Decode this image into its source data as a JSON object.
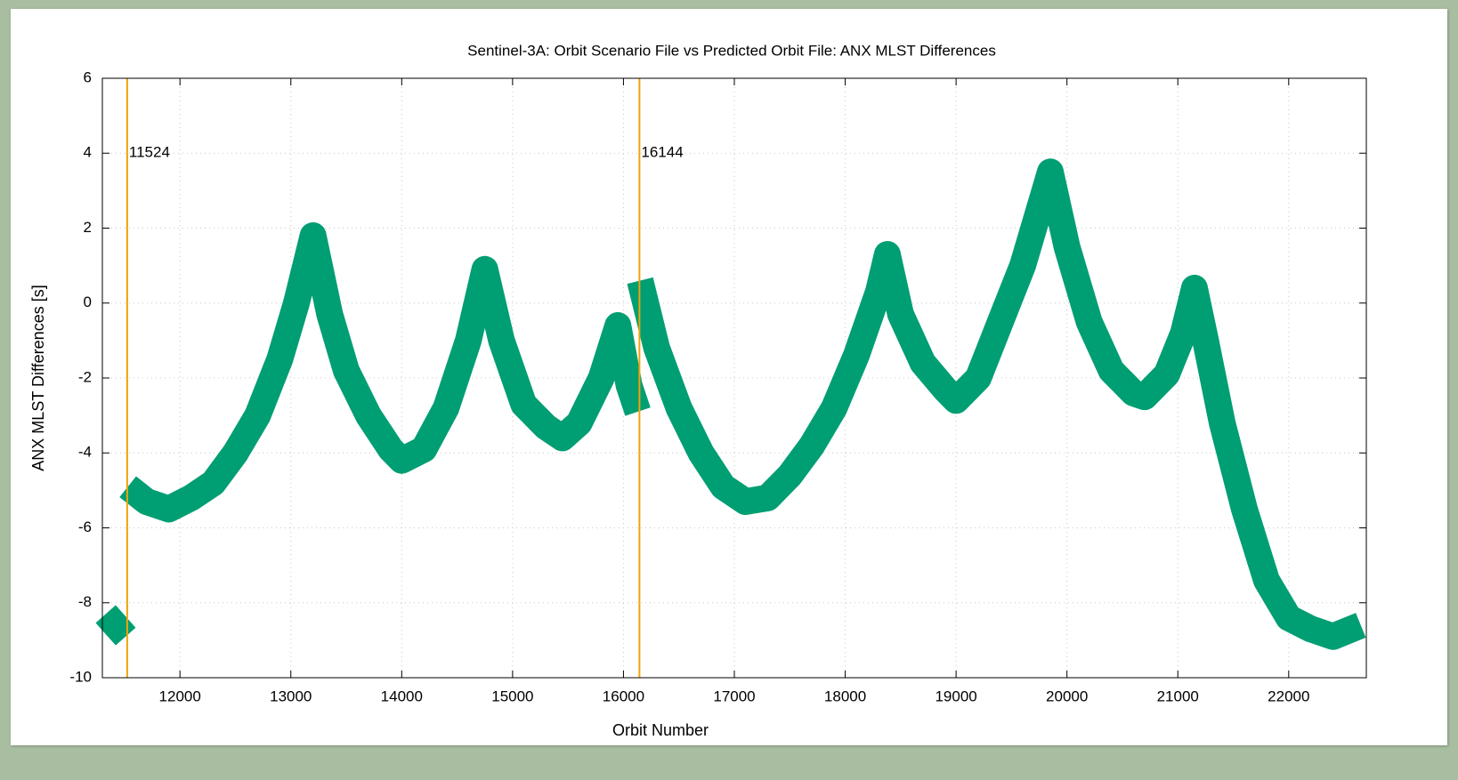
{
  "chart_data": {
    "type": "line",
    "title": "Sentinel-3A: Orbit Scenario File vs Predicted Orbit File: ANX MLST Differences",
    "x_label": "Orbit Number",
    "y_label": "ANX MLST Differences [s]",
    "xlim": [
      11300,
      22700
    ],
    "ylim": [
      -10,
      6
    ],
    "xticks": [
      12000,
      13000,
      14000,
      15000,
      16000,
      17000,
      18000,
      19000,
      20000,
      21000,
      22000
    ],
    "yticks": [
      -10,
      -8,
      -6,
      -4,
      -2,
      0,
      2,
      4,
      6
    ],
    "grid": true,
    "vlines": [
      11524,
      16144
    ],
    "vline_color": "#f0a30a",
    "x": [
      11330,
      11420,
      11510,
      11524,
      11530,
      11700,
      11900,
      12100,
      12300,
      12500,
      12700,
      12900,
      13050,
      13200,
      13350,
      13500,
      13700,
      13900,
      14000,
      14200,
      14400,
      14600,
      14750,
      14900,
      15100,
      15300,
      15450,
      15600,
      15800,
      15950,
      16050,
      16130,
      16144,
      16150,
      16300,
      16500,
      16700,
      16900,
      17100,
      17300,
      17500,
      17700,
      17900,
      18100,
      18300,
      18380,
      18500,
      18700,
      18900,
      19000,
      19200,
      19400,
      19600,
      19800,
      19850,
      20000,
      20200,
      20400,
      20600,
      20700,
      20900,
      21050,
      21150,
      21250,
      21400,
      21600,
      21800,
      22000,
      22200,
      22400,
      22650
    ],
    "series": [
      {
        "color": "#009e73",
        "values": [
          -8.3,
          -8.6,
          -8.9,
          null,
          -4.9,
          -5.3,
          -5.5,
          -5.2,
          -4.8,
          -4.0,
          -3.0,
          -1.5,
          0.0,
          1.8,
          -0.3,
          -1.8,
          -3.0,
          -3.9,
          -4.2,
          -3.9,
          -2.8,
          -1.0,
          0.9,
          -1.0,
          -2.7,
          -3.3,
          -3.6,
          -3.2,
          -2.0,
          -0.6,
          -2.2,
          -2.9,
          null,
          0.6,
          -1.2,
          -2.8,
          -4.0,
          -4.9,
          -5.3,
          -5.2,
          -4.6,
          -3.8,
          -2.8,
          -1.4,
          0.3,
          1.3,
          -0.3,
          -1.6,
          -2.3,
          -2.6,
          -2.0,
          -0.5,
          1.0,
          3.0,
          3.5,
          1.5,
          -0.5,
          -1.8,
          -2.4,
          -2.5,
          -1.9,
          -0.8,
          0.4,
          -1.0,
          -3.2,
          -5.5,
          -7.4,
          -8.4,
          -8.7,
          -8.9,
          -8.6
        ]
      }
    ]
  }
}
